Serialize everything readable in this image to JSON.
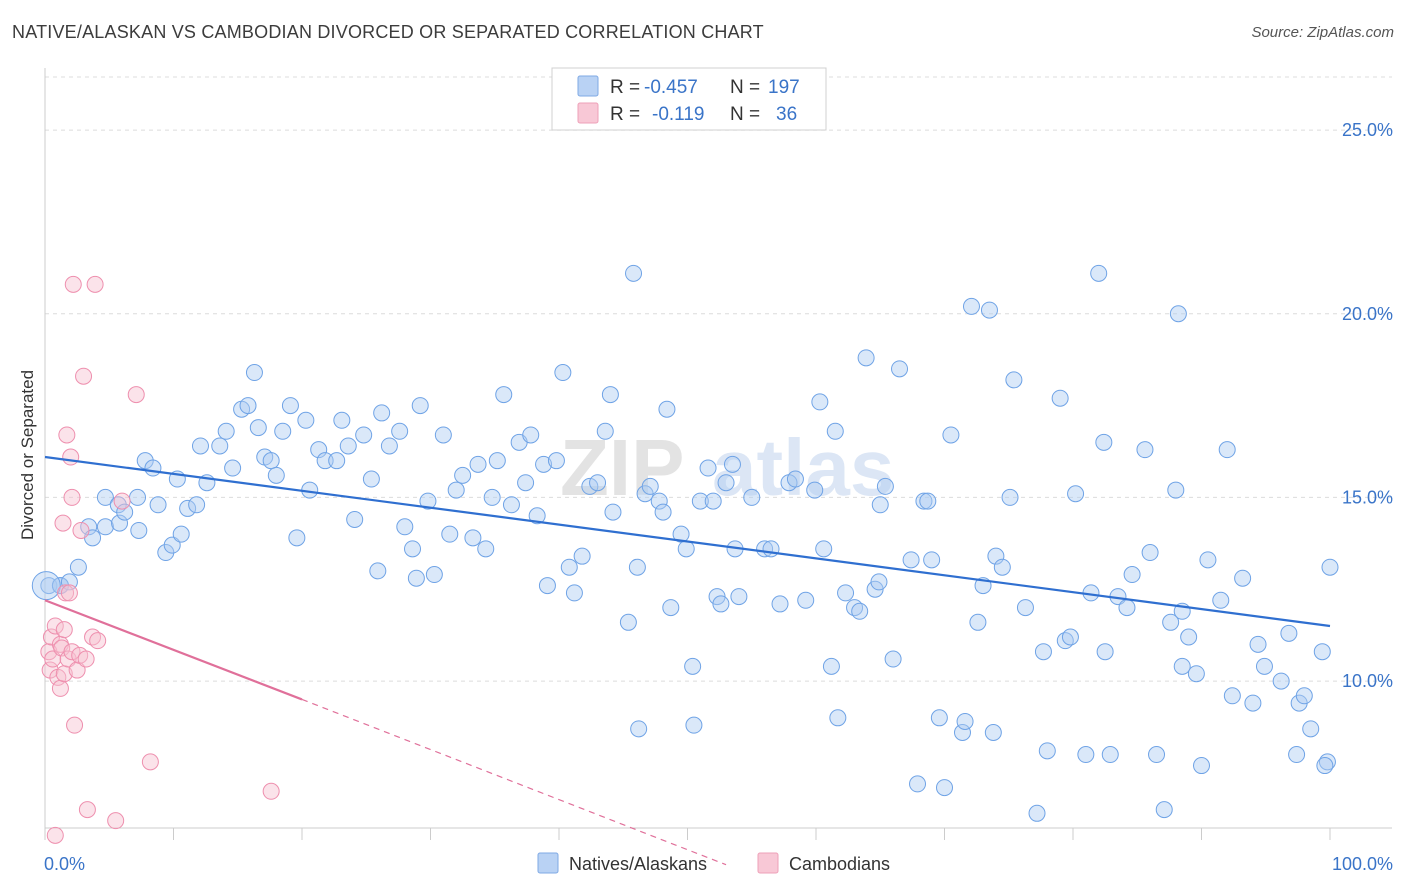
{
  "title": "NATIVE/ALASKAN VS CAMBODIAN DIVORCED OR SEPARATED CORRELATION CHART",
  "source": "Source: ZipAtlas.com",
  "watermark": {
    "part1": "ZIP",
    "part2": "atlas"
  },
  "legend": {
    "rows": [
      {
        "r_label": "R =",
        "r_value": "-0.457",
        "n_label": "N =",
        "n_value": "197",
        "color": "#a9c8f0"
      },
      {
        "r_label": "R =",
        "r_value": "-0.119",
        "n_label": "N =",
        "n_value": "36",
        "color": "#f5b8c8"
      }
    ]
  },
  "bottom_legend": [
    {
      "label": "Natives/Alaskans",
      "color": "#a9c8f0"
    },
    {
      "label": "Cambodians",
      "color": "#f5b8c8"
    }
  ],
  "chart_data": {
    "type": "scatter",
    "title": "NATIVE/ALASKAN VS CAMBODIAN DIVORCED OR SEPARATED CORRELATION CHART",
    "xlabel": "",
    "ylabel": "Divorced or Separated",
    "xlim": [
      0,
      100
    ],
    "ylim": [
      6,
      26.5
    ],
    "x_tick_labels": [
      "0.0%",
      "100.0%"
    ],
    "y_ticks": [
      10,
      15,
      20,
      25
    ],
    "y_tick_labels": [
      "10.0%",
      "15.0%",
      "20.0%",
      "25.0%"
    ],
    "grid": true,
    "series": [
      {
        "name": "Natives/Alaskans",
        "color": "#7fb0ea",
        "trend": {
          "x": [
            0,
            100
          ],
          "y": [
            16.1,
            11.5
          ],
          "color": "#2f6fd0"
        },
        "points": [
          [
            0.3,
            12.6
          ],
          [
            1.2,
            12.6
          ],
          [
            1.2,
            12.6
          ],
          [
            1.9,
            12.7
          ],
          [
            2.6,
            13.1
          ],
          [
            3.4,
            14.2
          ],
          [
            3.7,
            13.9
          ],
          [
            4.7,
            14.2
          ],
          [
            4.7,
            15.0
          ],
          [
            5.7,
            14.8
          ],
          [
            5.8,
            14.3
          ],
          [
            6.2,
            14.6
          ],
          [
            7.2,
            15.0
          ],
          [
            7.3,
            14.1
          ],
          [
            7.8,
            16.0
          ],
          [
            8.4,
            15.8
          ],
          [
            8.8,
            14.8
          ],
          [
            9.4,
            13.5
          ],
          [
            9.9,
            13.7
          ],
          [
            10.3,
            15.5
          ],
          [
            10.6,
            14.0
          ],
          [
            11.1,
            14.7
          ],
          [
            11.8,
            14.8
          ],
          [
            12.1,
            16.4
          ],
          [
            12.6,
            15.4
          ],
          [
            13.6,
            16.4
          ],
          [
            14.1,
            16.8
          ],
          [
            14.6,
            15.8
          ],
          [
            15.3,
            17.4
          ],
          [
            15.8,
            17.5
          ],
          [
            16.3,
            18.4
          ],
          [
            16.6,
            16.9
          ],
          [
            17.1,
            16.1
          ],
          [
            17.6,
            16.0
          ],
          [
            18.0,
            15.6
          ],
          [
            18.5,
            16.8
          ],
          [
            19.1,
            17.5
          ],
          [
            19.6,
            13.9
          ],
          [
            20.3,
            17.1
          ],
          [
            20.6,
            15.2
          ],
          [
            21.3,
            16.3
          ],
          [
            21.8,
            16.0
          ],
          [
            22.7,
            16.0
          ],
          [
            23.1,
            17.1
          ],
          [
            23.6,
            16.4
          ],
          [
            24.1,
            14.4
          ],
          [
            24.8,
            16.7
          ],
          [
            25.4,
            15.5
          ],
          [
            25.9,
            13.0
          ],
          [
            26.2,
            17.3
          ],
          [
            26.8,
            16.4
          ],
          [
            27.6,
            16.8
          ],
          [
            28.0,
            14.2
          ],
          [
            28.6,
            13.6
          ],
          [
            28.9,
            12.8
          ],
          [
            29.2,
            17.5
          ],
          [
            29.8,
            14.9
          ],
          [
            30.3,
            12.9
          ],
          [
            31.0,
            16.7
          ],
          [
            31.5,
            14.0
          ],
          [
            32.0,
            15.2
          ],
          [
            32.5,
            15.6
          ],
          [
            33.3,
            13.9
          ],
          [
            33.7,
            15.9
          ],
          [
            34.3,
            13.6
          ],
          [
            34.8,
            15.0
          ],
          [
            35.2,
            16.0
          ],
          [
            35.7,
            17.8
          ],
          [
            36.3,
            14.8
          ],
          [
            36.9,
            16.5
          ],
          [
            37.4,
            15.4
          ],
          [
            37.8,
            16.7
          ],
          [
            38.3,
            14.5
          ],
          [
            38.8,
            15.9
          ],
          [
            39.1,
            12.6
          ],
          [
            39.8,
            16.0
          ],
          [
            40.3,
            18.4
          ],
          [
            40.8,
            13.1
          ],
          [
            41.2,
            12.4
          ],
          [
            41.8,
            13.4
          ],
          [
            42.4,
            15.3
          ],
          [
            43.0,
            15.4
          ],
          [
            43.6,
            16.8
          ],
          [
            44.0,
            17.8
          ],
          [
            44.2,
            14.6
          ],
          [
            45.4,
            11.6
          ],
          [
            45.8,
            21.1
          ],
          [
            46.1,
            13.1
          ],
          [
            46.7,
            15.1
          ],
          [
            47.1,
            15.3
          ],
          [
            47.8,
            14.9
          ],
          [
            48.1,
            14.6
          ],
          [
            48.4,
            17.4
          ],
          [
            48.7,
            12.0
          ],
          [
            49.5,
            14.0
          ],
          [
            49.9,
            13.6
          ],
          [
            50.4,
            10.4
          ],
          [
            51.0,
            14.9
          ],
          [
            51.6,
            15.8
          ],
          [
            52.0,
            14.9
          ],
          [
            52.3,
            12.3
          ],
          [
            52.6,
            12.1
          ],
          [
            53.0,
            15.4
          ],
          [
            53.5,
            15.9
          ],
          [
            53.7,
            13.6
          ],
          [
            54.0,
            12.3
          ],
          [
            55.0,
            15.0
          ],
          [
            56.0,
            13.6
          ],
          [
            56.5,
            13.6
          ],
          [
            57.2,
            12.1
          ],
          [
            57.9,
            15.4
          ],
          [
            58.4,
            15.5
          ],
          [
            59.2,
            12.2
          ],
          [
            59.9,
            15.2
          ],
          [
            60.3,
            17.6
          ],
          [
            60.6,
            13.6
          ],
          [
            61.2,
            10.4
          ],
          [
            61.7,
            9.0
          ],
          [
            62.3,
            12.4
          ],
          [
            63.0,
            12.0
          ],
          [
            63.4,
            11.9
          ],
          [
            63.9,
            18.8
          ],
          [
            64.6,
            12.5
          ],
          [
            64.9,
            12.7
          ],
          [
            65.4,
            15.3
          ],
          [
            66.0,
            10.6
          ],
          [
            66.5,
            18.5
          ],
          [
            67.4,
            13.3
          ],
          [
            67.9,
            7.2
          ],
          [
            68.4,
            14.9
          ],
          [
            68.7,
            14.9
          ],
          [
            69.0,
            13.3
          ],
          [
            69.6,
            9.0
          ],
          [
            70.5,
            16.7
          ],
          [
            71.4,
            8.6
          ],
          [
            71.6,
            8.9
          ],
          [
            72.1,
            20.2
          ],
          [
            72.6,
            11.6
          ],
          [
            73.0,
            12.6
          ],
          [
            73.8,
            8.6
          ],
          [
            74.0,
            13.4
          ],
          [
            74.5,
            13.1
          ],
          [
            75.1,
            15.0
          ],
          [
            75.4,
            18.2
          ],
          [
            76.3,
            12.0
          ],
          [
            77.2,
            6.4
          ],
          [
            77.7,
            10.8
          ],
          [
            78.0,
            8.1
          ],
          [
            79.0,
            17.7
          ],
          [
            79.4,
            11.1
          ],
          [
            79.8,
            11.2
          ],
          [
            80.2,
            15.1
          ],
          [
            81.0,
            8.0
          ],
          [
            81.4,
            12.4
          ],
          [
            82.4,
            16.5
          ],
          [
            82.5,
            10.8
          ],
          [
            82.9,
            8.0
          ],
          [
            83.5,
            12.3
          ],
          [
            84.2,
            12.0
          ],
          [
            84.6,
            12.9
          ],
          [
            85.6,
            16.3
          ],
          [
            86.0,
            13.5
          ],
          [
            86.5,
            8.0
          ],
          [
            87.1,
            6.5
          ],
          [
            87.6,
            11.6
          ],
          [
            88.0,
            15.2
          ],
          [
            88.5,
            10.4
          ],
          [
            88.5,
            11.9
          ],
          [
            89.0,
            11.2
          ],
          [
            89.6,
            10.2
          ],
          [
            90.5,
            13.3
          ],
          [
            91.5,
            12.2
          ],
          [
            92.4,
            9.6
          ],
          [
            93.2,
            12.8
          ],
          [
            94.0,
            9.4
          ],
          [
            94.4,
            11.0
          ],
          [
            94.9,
            10.4
          ],
          [
            96.2,
            10.0
          ],
          [
            96.8,
            11.3
          ],
          [
            97.4,
            8.0
          ],
          [
            97.6,
            9.4
          ],
          [
            98.5,
            8.7
          ],
          [
            99.4,
            10.8
          ],
          [
            100.0,
            13.1
          ],
          [
            98.0,
            9.6
          ],
          [
            99.8,
            7.8
          ],
          [
            99.6,
            7.7
          ],
          [
            70.0,
            7.1
          ],
          [
            73.5,
            20.1
          ],
          [
            88.2,
            20.0
          ],
          [
            46.2,
            8.7
          ],
          [
            61.5,
            16.8
          ],
          [
            82.0,
            21.1
          ],
          [
            92.0,
            16.3
          ],
          [
            50.5,
            8.8
          ],
          [
            65.0,
            14.8
          ],
          [
            90.0,
            7.7
          ]
        ]
      },
      {
        "name": "Cambodians",
        "color": "#f29ab4",
        "trend": {
          "x": [
            0,
            20
          ],
          "y": [
            12.2,
            9.5
          ],
          "dash_to": [
            53,
            5.0
          ],
          "color": "#e0709a"
        },
        "points": [
          [
            0.3,
            10.8
          ],
          [
            0.4,
            10.3
          ],
          [
            0.5,
            11.2
          ],
          [
            0.6,
            10.6
          ],
          [
            0.8,
            11.5
          ],
          [
            1.0,
            10.1
          ],
          [
            1.2,
            9.8
          ],
          [
            1.2,
            11.0
          ],
          [
            1.3,
            10.9
          ],
          [
            1.4,
            14.3
          ],
          [
            1.5,
            10.2
          ],
          [
            1.5,
            11.4
          ],
          [
            1.6,
            12.4
          ],
          [
            1.7,
            16.7
          ],
          [
            1.8,
            10.6
          ],
          [
            2.0,
            16.1
          ],
          [
            2.1,
            15.0
          ],
          [
            2.1,
            10.8
          ],
          [
            2.2,
            20.8
          ],
          [
            2.3,
            8.8
          ],
          [
            2.5,
            10.3
          ],
          [
            2.7,
            10.7
          ],
          [
            2.8,
            14.1
          ],
          [
            3.0,
            18.3
          ],
          [
            3.2,
            10.6
          ],
          [
            3.3,
            6.5
          ],
          [
            3.7,
            11.2
          ],
          [
            3.9,
            20.8
          ],
          [
            4.1,
            11.1
          ],
          [
            5.5,
            6.2
          ],
          [
            6.0,
            14.9
          ],
          [
            7.1,
            17.8
          ],
          [
            8.2,
            7.8
          ],
          [
            17.6,
            7.0
          ],
          [
            0.8,
            5.8
          ],
          [
            1.9,
            12.4
          ]
        ]
      }
    ]
  }
}
